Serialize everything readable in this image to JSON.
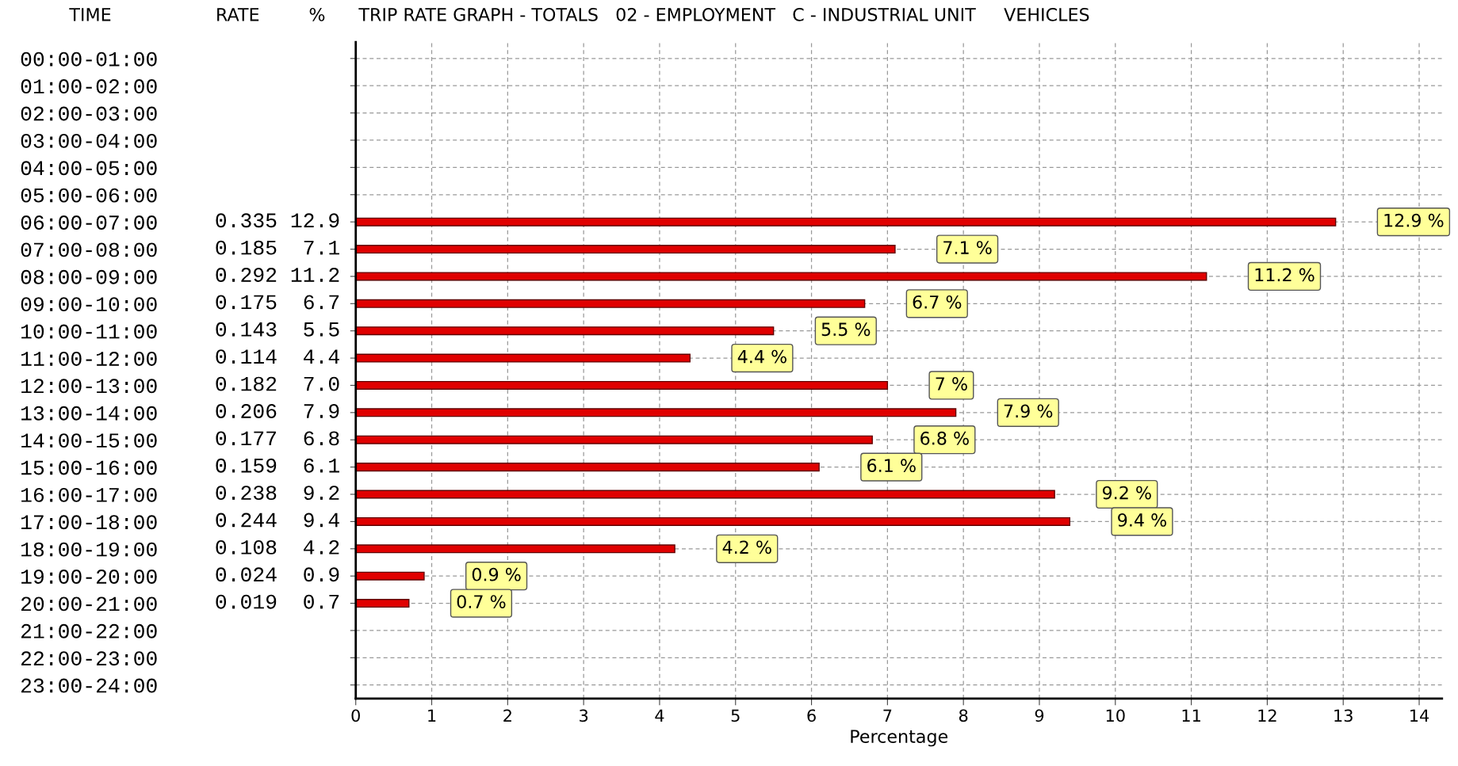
{
  "chart_data": {
    "type": "bar",
    "orientation": "horizontal",
    "title": "TRIP RATE GRAPH - TOTALS   02 - EMPLOYMENT   C - INDUSTRIAL UNIT     VEHICLES",
    "xlabel": "Percentage",
    "categories": [
      "00:00-01:00",
      "01:00-02:00",
      "02:00-03:00",
      "03:00-04:00",
      "04:00-05:00",
      "05:00-06:00",
      "06:00-07:00",
      "07:00-08:00",
      "08:00-09:00",
      "09:00-10:00",
      "10:00-11:00",
      "11:00-12:00",
      "12:00-13:00",
      "13:00-14:00",
      "14:00-15:00",
      "15:00-16:00",
      "16:00-17:00",
      "17:00-18:00",
      "18:00-19:00",
      "19:00-20:00",
      "20:00-21:00",
      "21:00-22:00",
      "22:00-23:00",
      "23:00-24:00"
    ],
    "values": [
      null,
      null,
      null,
      null,
      null,
      null,
      12.9,
      7.1,
      11.2,
      6.7,
      5.5,
      4.4,
      7.0,
      7.9,
      6.8,
      6.1,
      9.2,
      9.4,
      4.2,
      0.9,
      0.7,
      null,
      null,
      null
    ],
    "value_labels": [
      null,
      null,
      null,
      null,
      null,
      null,
      "12.9 %",
      "7.1 %",
      "11.2 %",
      "6.7 %",
      "5.5 %",
      "4.4 %",
      "7 %",
      "7.9 %",
      "6.8 %",
      "6.1 %",
      "9.2 %",
      "9.4 %",
      "4.2 %",
      "0.9 %",
      "0.7 %",
      null,
      null,
      null
    ],
    "color": "#e00000",
    "xlim": [
      0,
      14.3
    ],
    "xticks": [
      0,
      1,
      2,
      3,
      4,
      5,
      6,
      7,
      8,
      9,
      10,
      11,
      12,
      13,
      14
    ],
    "grid": true,
    "line_style": "dashed",
    "annotations": [
      "TIME",
      "RATE",
      "%",
      "0.335 12.9",
      "0.185  7.1",
      "0.292 11.2",
      "0.175  6.7",
      "0.143  5.5",
      "0.114  4.4",
      "0.182  7.0",
      "0.206  7.9",
      "0.177  6.8",
      "0.159  6.1",
      "0.238  9.2",
      "0.244  9.4",
      "0.108  4.2",
      "0.024  0.9",
      "0.019  0.7"
    ]
  }
}
